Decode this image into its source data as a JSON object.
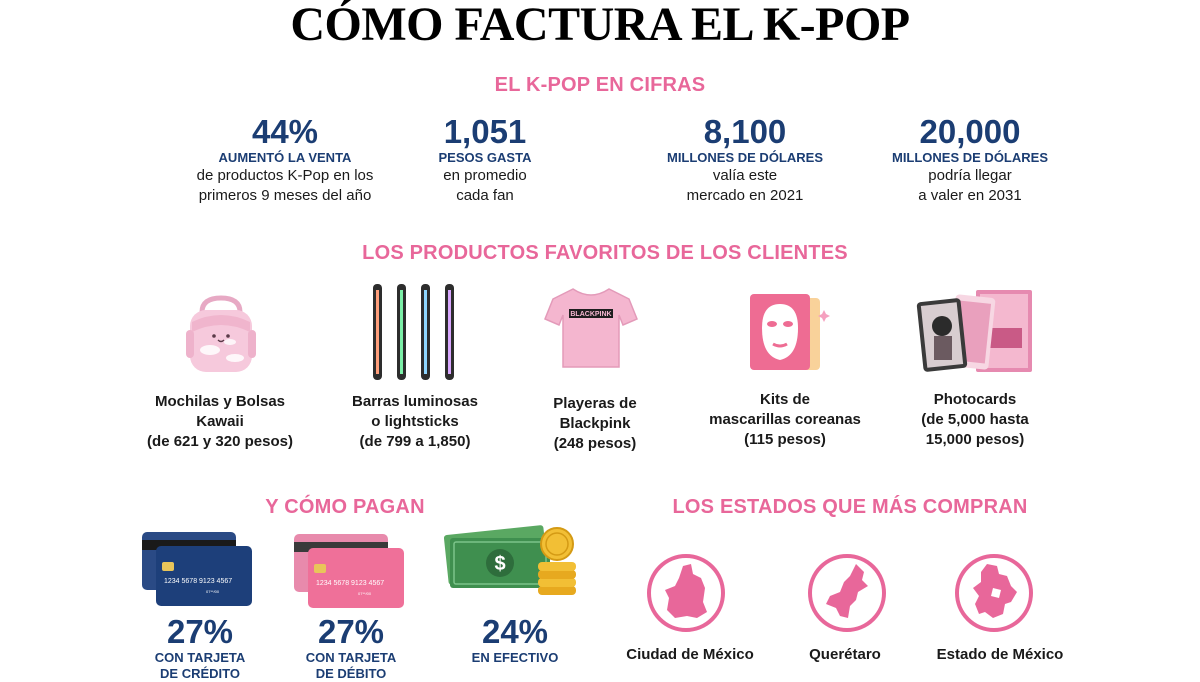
{
  "title": "CÓMO FACTURA EL K-POP",
  "sections": {
    "cifras": "EL K-POP EN CIFRAS",
    "productos": "LOS PRODUCTOS FAVORITOS DE LOS CLIENTES",
    "pagos": "Y CÓMO PAGAN",
    "estados": "LOS ESTADOS QUE MÁS COMPRAN"
  },
  "stats": [
    {
      "value": "44%",
      "label": "AUMENTÓ LA VENTA",
      "lines": [
        "de productos K-Pop en los",
        "primeros 9 meses del año"
      ]
    },
    {
      "value": "1,051",
      "label": "PESOS  GASTA",
      "lines": [
        "en promedio",
        "cada fan"
      ]
    },
    {
      "value": "8,100",
      "label": "MILLONES DE DÓLARES",
      "lines": [
        "valía este",
        "mercado en 2021"
      ]
    },
    {
      "value": "20,000",
      "label": "MILLONES DE DÓLARES",
      "lines": [
        "podría llegar",
        "a valer en 2031"
      ]
    }
  ],
  "products": [
    {
      "icon": "backpack-icon",
      "lines": [
        "Mochilas y Bolsas",
        "Kawaii",
        "(de 621 y 320 pesos)"
      ]
    },
    {
      "icon": "lightstick-icon",
      "lines": [
        "Barras luminosas",
        "o lightsticks",
        "(de 799 a 1,850)"
      ]
    },
    {
      "icon": "tshirt-icon",
      "shirt_text": "BLACKPINK",
      "lines": [
        "Playeras de",
        "Blackpink",
        "(248 pesos)"
      ]
    },
    {
      "icon": "face-mask-icon",
      "lines": [
        "Kits de",
        "mascarillas coreanas",
        "(115 pesos)"
      ]
    },
    {
      "icon": "photocards-icon",
      "lines": [
        "Photocards",
        "(de 5,000 hasta",
        "15,000 pesos)"
      ]
    }
  ],
  "payments": [
    {
      "icon": "credit-card-icon",
      "card_number": "1234  5678  9123  4567",
      "card_small": "07**/00",
      "value": "27%",
      "lines": [
        "CON TARJETA",
        "DE CRÉDITO"
      ],
      "color": "#1d3f7a"
    },
    {
      "icon": "debit-card-icon",
      "card_number": "1234  5678  9123  4567",
      "card_small": "07**/00",
      "value": "27%",
      "lines": [
        "CON TARJETA",
        "DE DÉBITO"
      ],
      "color": "#e8679a"
    },
    {
      "icon": "cash-icon",
      "currency": "$",
      "value": "24%",
      "lines": [
        "EN EFECTIVO"
      ],
      "color": "#3f8f4f"
    }
  ],
  "states": [
    {
      "icon": "cdmx-map-icon",
      "name": "Ciudad de México"
    },
    {
      "icon": "queretaro-map-icon",
      "name": "Querétaro"
    },
    {
      "icon": "edomex-map-icon",
      "name": "Estado de México"
    }
  ],
  "colors": {
    "pink": "#e8679a",
    "navy": "#1b3d73",
    "light_pink": "#f5c6d8"
  }
}
